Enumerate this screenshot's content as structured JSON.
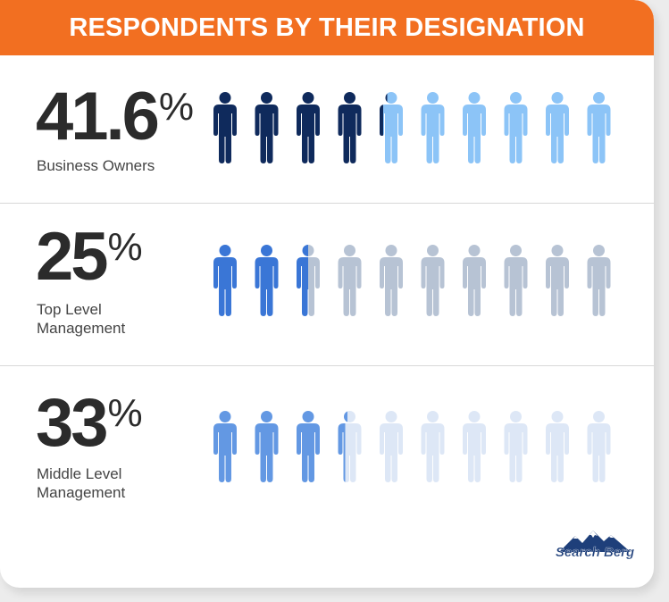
{
  "header": {
    "title": "RESPONDENTS BY THEIR DESIGNATION"
  },
  "chart_data": {
    "type": "pictogram",
    "icons_per_row": 10,
    "rows": [
      {
        "value": "41.6",
        "unit": "%",
        "label": "Business Owners",
        "fraction": 0.416,
        "color_filled": "#0f2a5c",
        "color_empty": "#8cc4f7"
      },
      {
        "value": "25",
        "unit": "%",
        "label": "Top Level\nManagement",
        "fraction": 0.25,
        "color_filled": "#3a76d6",
        "color_empty": "#b7c3d4"
      },
      {
        "value": "33",
        "unit": "%",
        "label": "Middle Level\nManagement",
        "fraction": 0.33,
        "color_filled": "#6398e3",
        "color_empty": "#dde7f6"
      }
    ]
  },
  "logo": {
    "text": "Search Berg"
  }
}
